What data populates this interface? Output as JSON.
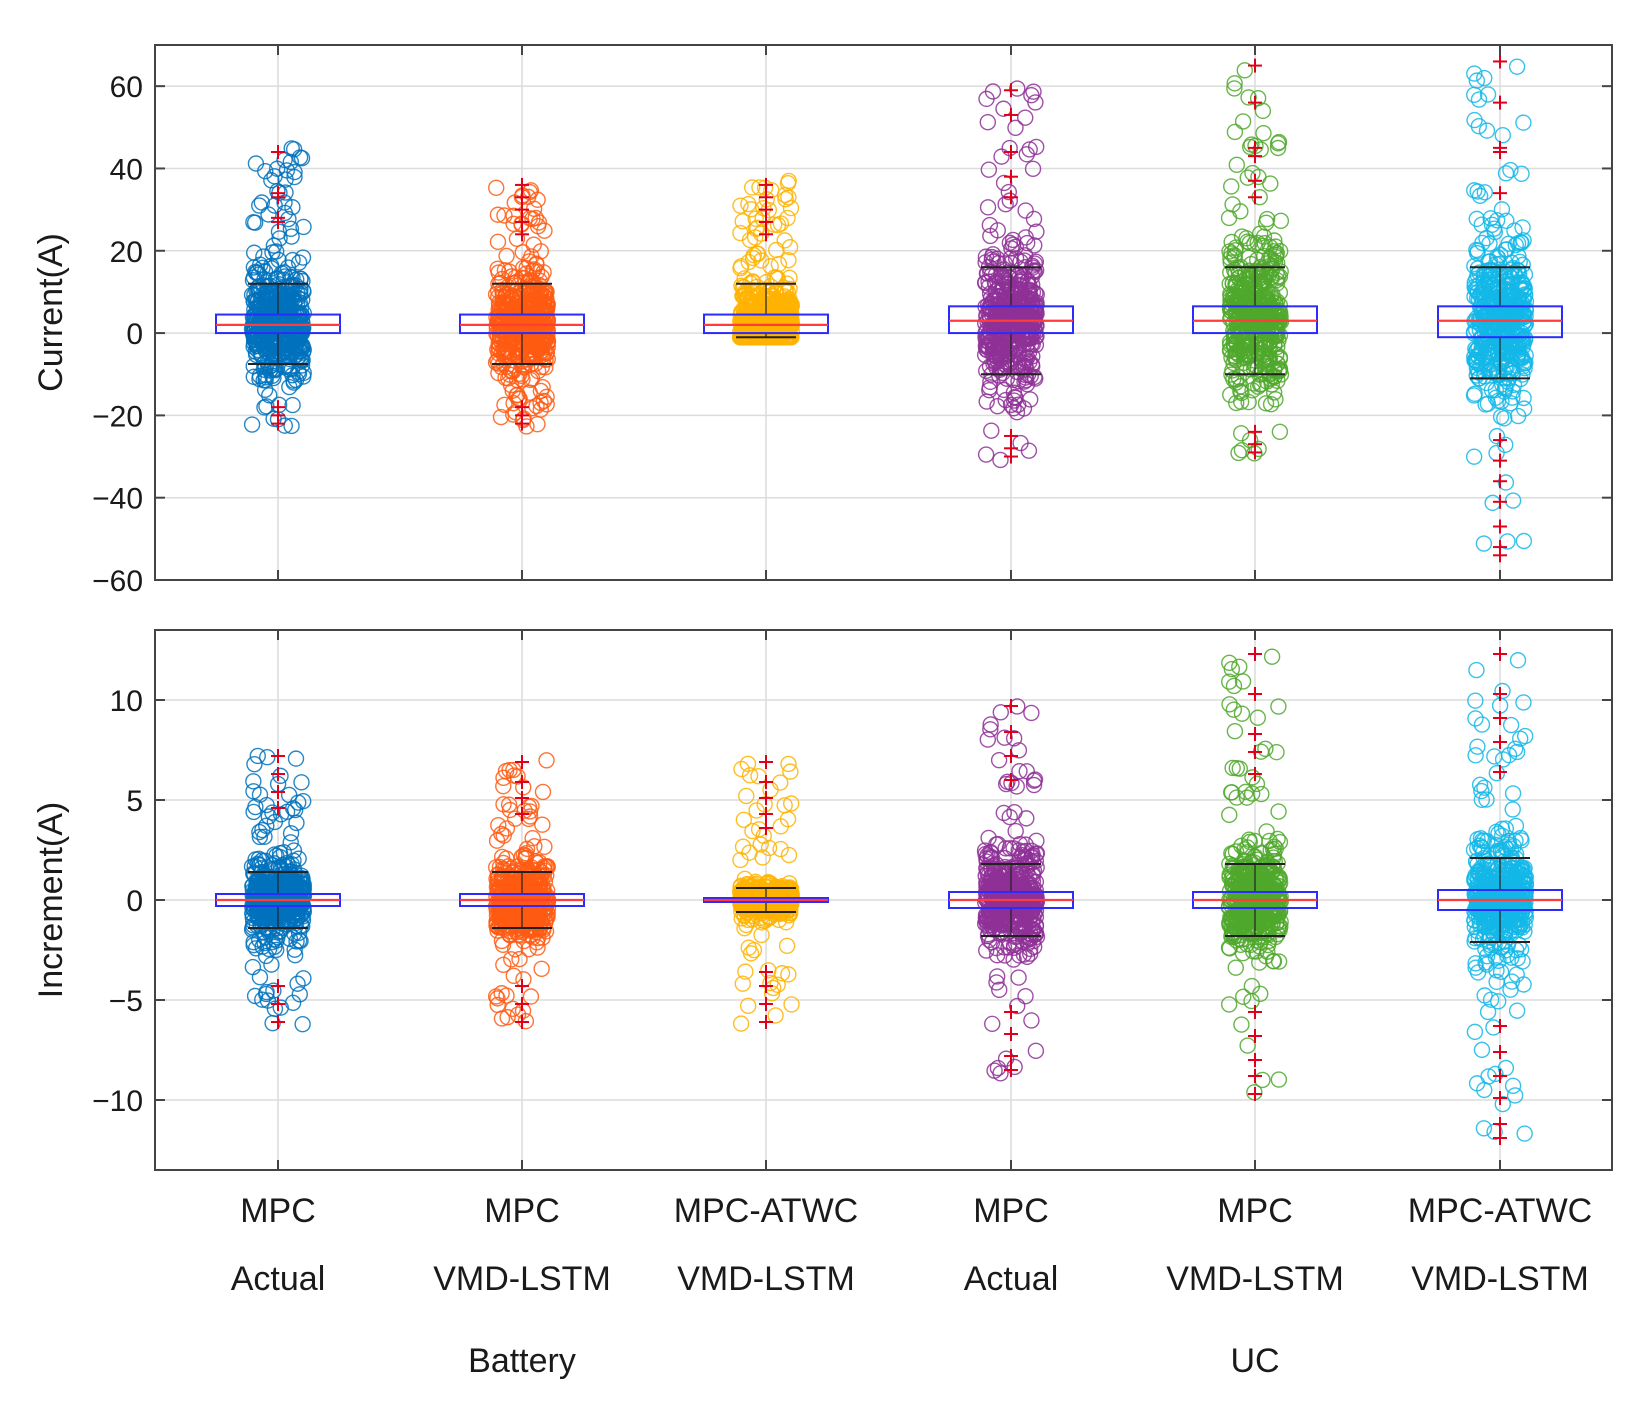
{
  "chart_data": [
    {
      "type": "box",
      "ylabel": "Current(A)",
      "ylim": [
        -60,
        70
      ],
      "yticks": [
        -60,
        -40,
        -20,
        0,
        20,
        40,
        60
      ],
      "ytick_labels": [
        "−60",
        "−40",
        "−20",
        "0",
        "20",
        "40",
        "60"
      ],
      "grid": true,
      "series": [
        {
          "name": "MPC Actual (Battery)",
          "color": "#0072BD",
          "q1": 0,
          "median": 2,
          "q3": 4.5,
          "whisker_low": -7.5,
          "whisker_high": 12,
          "min": -23,
          "max": 45,
          "outliers": [
            44,
            34,
            33,
            28,
            27,
            -18,
            -20,
            -22
          ]
        },
        {
          "name": "MPC VMD-LSTM (Battery)",
          "color": "#FF5A12",
          "q1": 0,
          "median": 2,
          "q3": 4.5,
          "whisker_low": -7.5,
          "whisker_high": 12,
          "min": -23,
          "max": 37,
          "outliers": [
            36,
            33,
            30,
            27,
            24,
            -18,
            -20,
            -22
          ]
        },
        {
          "name": "MPC-ATWC VMD-LSTM (Battery)",
          "color": "#FFB300",
          "q1": 0,
          "median": 2,
          "q3": 4.5,
          "whisker_low": -1,
          "whisker_high": 12,
          "min": -1,
          "max": 37,
          "outliers": [
            36,
            33,
            30,
            27,
            24
          ]
        },
        {
          "name": "MPC Actual (UC)",
          "color": "#8E3096",
          "q1": 0,
          "median": 3,
          "q3": 6.5,
          "whisker_low": -10,
          "whisker_high": 16,
          "min": -31,
          "max": 60,
          "outliers": [
            59,
            53,
            44,
            38,
            33,
            -25,
            -28,
            -30
          ]
        },
        {
          "name": "MPC VMD-LSTM (UC)",
          "color": "#4FA82B",
          "q1": 0,
          "median": 3,
          "q3": 6.5,
          "whisker_low": -10,
          "whisker_high": 16,
          "min": -30,
          "max": 66,
          "outliers": [
            65,
            56,
            45,
            43,
            37,
            33,
            -24,
            -27,
            -29
          ]
        },
        {
          "name": "MPC-ATWC VMD-LSTM (UC)",
          "color": "#13B7E8",
          "q1": -1,
          "median": 3,
          "q3": 6.5,
          "whisker_low": -11,
          "whisker_high": 16,
          "min": -55,
          "max": 66,
          "outliers": [
            66,
            56,
            45,
            44,
            34,
            -26,
            -31,
            -36,
            -41,
            -47,
            -52,
            -54
          ]
        }
      ]
    },
    {
      "type": "box",
      "ylabel": "Increment(A)",
      "ylim": [
        -13.5,
        13.5
      ],
      "yticks": [
        -10,
        -5,
        0,
        5,
        10
      ],
      "ytick_labels": [
        "−10",
        "−5",
        "0",
        "5",
        "10"
      ],
      "grid": true,
      "series": [
        {
          "name": "MPC Actual (Battery)",
          "color": "#0072BD",
          "q1": -0.3,
          "median": 0,
          "q3": 0.3,
          "whisker_low": -1.4,
          "whisker_high": 1.4,
          "min": -6.5,
          "max": 7.3,
          "outliers": [
            7.2,
            6.3,
            5.4,
            4.6,
            -4.3,
            -5.2,
            -6.1
          ]
        },
        {
          "name": "MPC VMD-LSTM (Battery)",
          "color": "#FF5A12",
          "q1": -0.3,
          "median": 0,
          "q3": 0.3,
          "whisker_low": -1.4,
          "whisker_high": 1.4,
          "min": -6.4,
          "max": 7,
          "outliers": [
            6.9,
            5.9,
            5.1,
            4.3,
            -4.3,
            -5.2,
            -6.1
          ]
        },
        {
          "name": "MPC-ATWC VMD-LSTM (Battery)",
          "color": "#FFB300",
          "q1": -0.1,
          "median": 0,
          "q3": 0.1,
          "whisker_low": -0.6,
          "whisker_high": 0.6,
          "min": -6.4,
          "max": 7,
          "outliers": [
            6.9,
            5.9,
            5.1,
            4.3,
            3.6,
            -3.6,
            -4.3,
            -5.2,
            -6.1
          ]
        },
        {
          "name": "MPC Actual (UC)",
          "color": "#8E3096",
          "q1": -0.4,
          "median": 0,
          "q3": 0.4,
          "whisker_low": -1.8,
          "whisker_high": 1.8,
          "min": -8.7,
          "max": 9.8,
          "outliers": [
            9.7,
            8.4,
            7.2,
            6.0,
            -5.6,
            -6.7,
            -7.8,
            -8.5
          ]
        },
        {
          "name": "MPC VMD-LSTM (UC)",
          "color": "#4FA82B",
          "q1": -0.4,
          "median": 0,
          "q3": 0.4,
          "whisker_low": -1.8,
          "whisker_high": 1.8,
          "min": -9.8,
          "max": 12.4,
          "outliers": [
            12.3,
            10.3,
            8.3,
            7.4,
            6.3,
            -5.6,
            -6.8,
            -8.0,
            -8.8,
            -9.7
          ]
        },
        {
          "name": "MPC-ATWC VMD-LSTM (UC)",
          "color": "#13B7E8",
          "q1": -0.5,
          "median": 0,
          "q3": 0.5,
          "whisker_low": -2.1,
          "whisker_high": 2.1,
          "min": -12.2,
          "max": 12.4,
          "outliers": [
            12.3,
            10.3,
            9.1,
            7.9,
            6.4,
            -6.3,
            -7.6,
            -8.8,
            -9.9,
            -11.2,
            -11.9
          ]
        }
      ]
    }
  ],
  "categories": [
    {
      "line1": "MPC",
      "line2": "Actual"
    },
    {
      "line1": "MPC",
      "line2": "VMD-LSTM"
    },
    {
      "line1": "MPC-ATWC",
      "line2": "VMD-LSTM"
    },
    {
      "line1": "MPC",
      "line2": "Actual"
    },
    {
      "line1": "MPC",
      "line2": "VMD-LSTM"
    },
    {
      "line1": "MPC-ATWC",
      "line2": "VMD-LSTM"
    }
  ],
  "groups": [
    {
      "label": "Battery"
    },
    {
      "label": "UC"
    }
  ],
  "style": {
    "box_color": "#2B2BFF",
    "median_color": "#FF3B3B",
    "outlier_marker_color": "#E0001B",
    "whisker_cap_color": "#222222",
    "axis_color": "#444444",
    "grid_color": "#dcdcdc"
  }
}
